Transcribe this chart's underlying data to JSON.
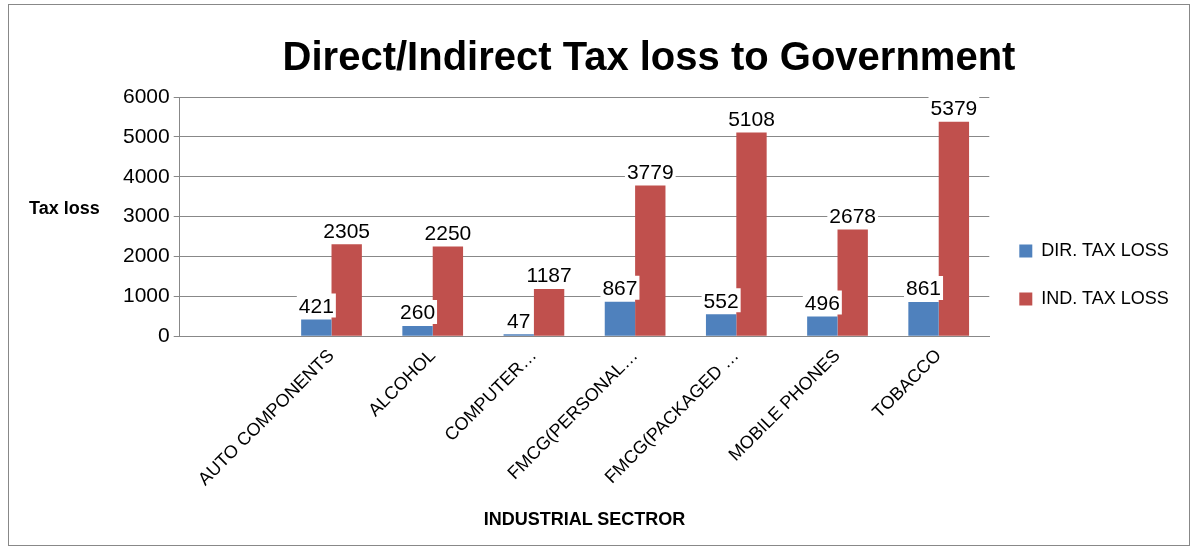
{
  "chart_data": {
    "type": "bar",
    "title": "Direct/Indirect Tax loss to Government",
    "xlabel": "INDUSTRIAL SECTROR",
    "ylabel": "Tax loss",
    "categories": [
      null,
      "AUTO COMPONENTS",
      "ALCOHOL",
      "COMPUTER…",
      "FMCG(PERSONAL…",
      "FMCG(PACKAGED …",
      "MOBILE PHONES",
      "TOBACCO"
    ],
    "series": [
      {
        "name": "DIR. TAX LOSS",
        "color": "#4f81bd",
        "values": [
          null,
          421,
          260,
          47,
          867,
          552,
          496,
          861
        ]
      },
      {
        "name": "IND. TAX LOSS",
        "color": "#c0504d",
        "values": [
          null,
          2305,
          2250,
          1187,
          3779,
          5108,
          2678,
          5379
        ]
      }
    ],
    "ylim": [
      0,
      6000
    ],
    "yticks": [
      0,
      1000,
      2000,
      3000,
      4000,
      5000,
      6000
    ],
    "grid": "y",
    "legend": "right",
    "data_labels": true
  }
}
